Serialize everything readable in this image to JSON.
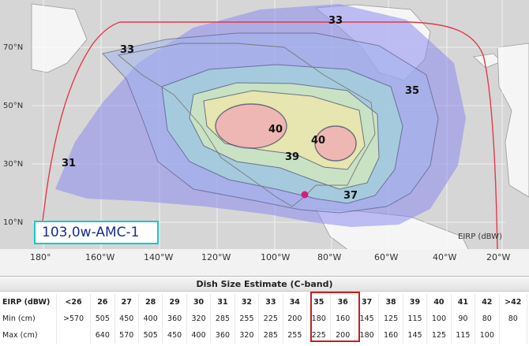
{
  "map": {
    "satellite_label": "103,0w-AMC-1",
    "eirp_unit": "EIRP (dBW)",
    "latitude_labels": [
      "70°N",
      "50°N",
      "30°N",
      "10°N"
    ],
    "longitude_labels": [
      "180°",
      "160°W",
      "140°W",
      "120°W",
      "100°W",
      "80°W",
      "60°W",
      "40°W",
      "20°W"
    ],
    "contour_labels": [
      {
        "text": "33"
      },
      {
        "text": "33"
      },
      {
        "text": "35"
      },
      {
        "text": "40"
      },
      {
        "text": "40"
      },
      {
        "text": "39"
      },
      {
        "text": "31"
      },
      {
        "text": "37"
      }
    ],
    "colors": {
      "outer": "#8c8cf0",
      "c33": "#a3b4ee",
      "c35": "#a6dcd6",
      "c37": "#dcf0b8",
      "c39": "#f4e7a8",
      "c40": "#f1a8b4",
      "visibility": "#e23a4a",
      "marker": "#d0207c",
      "land": "#f4f4f4",
      "ocean": "#d8d8d8"
    }
  },
  "dish_size": {
    "title": "Dish Size Estimate (C-band)",
    "row_labels": [
      "EIRP (dBW)",
      "Min (cm)",
      "Max (cm)"
    ],
    "eirp": [
      "<26",
      "26",
      "27",
      "28",
      "29",
      "30",
      "31",
      "32",
      "33",
      "34",
      "35",
      "36",
      "37",
      "38",
      "39",
      "40",
      "41",
      "42",
      ">42"
    ],
    "min": [
      ">570",
      "505",
      "450",
      "400",
      "360",
      "320",
      "285",
      "255",
      "225",
      "200",
      "180",
      "160",
      "145",
      "125",
      "115",
      "100",
      "90",
      "80",
      "80"
    ],
    "max": [
      "",
      "640",
      "570",
      "505",
      "450",
      "400",
      "360",
      "320",
      "285",
      "255",
      "225",
      "200",
      "180",
      "160",
      "145",
      "125",
      "115",
      "100",
      ""
    ],
    "highlighted_columns": [
      "35",
      "36"
    ],
    "highlight_color": "#c81e1e"
  }
}
